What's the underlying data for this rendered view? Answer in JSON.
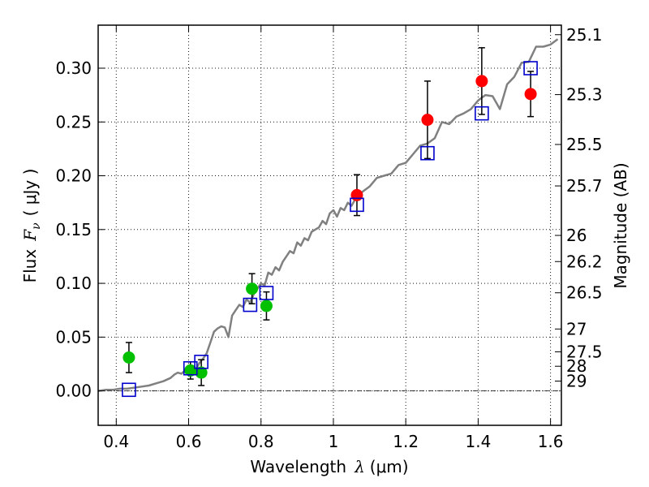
{
  "chart_data": {
    "type": "scatter",
    "xlabel_prefix": "Wavelength",
    "xlabel_symbol": "λ",
    "xlabel_unit": "(μm)",
    "ylabel_prefix": "Flux",
    "ylabel_symbol": "F",
    "ylabel_subscript": "ν",
    "ylabel_unit": "( μJy )",
    "ylabel_right": "Magnitude (AB)",
    "xlim": [
      0.35,
      1.63
    ],
    "ylim": [
      -0.032,
      0.34
    ],
    "x_ticks": [
      0.4,
      0.6,
      0.8,
      1.0,
      1.2,
      1.4,
      1.6
    ],
    "x_tick_labels": [
      "0.4",
      "0.6",
      "0.8",
      "1",
      "1.2",
      "1.4",
      "1.6"
    ],
    "y_ticks": [
      0.0,
      0.05,
      0.1,
      0.15,
      0.2,
      0.25,
      0.3
    ],
    "y_tick_labels": [
      "0.00",
      "0.05",
      "0.10",
      "0.15",
      "0.20",
      "0.25",
      "0.30"
    ],
    "right_ticks": [
      {
        "label": "25.1",
        "mag": 25.1
      },
      {
        "label": "25.3",
        "mag": 25.3
      },
      {
        "label": "25.5",
        "mag": 25.5
      },
      {
        "label": "25.7",
        "mag": 25.7
      },
      {
        "label": "26",
        "mag": 26.0
      },
      {
        "label": "26.2",
        "mag": 26.2
      },
      {
        "label": "26.5",
        "mag": 26.5
      },
      {
        "label": "27",
        "mag": 27.0
      },
      {
        "label": "27.5",
        "mag": 27.5
      },
      {
        "label": "28",
        "mag": 28.0
      },
      {
        "label": "29",
        "mag": 29.0
      }
    ],
    "grid": true,
    "colors": {
      "model": "#808080",
      "green": "#00c000",
      "red": "#ff0000",
      "box": "#0000cc",
      "errorbar": "#000000",
      "zero_line": "#000000"
    },
    "model_curve": {
      "x": [
        0.35,
        0.37,
        0.39,
        0.41,
        0.43,
        0.45,
        0.47,
        0.49,
        0.51,
        0.53,
        0.55,
        0.56,
        0.57,
        0.58,
        0.59,
        0.6,
        0.61,
        0.62,
        0.63,
        0.64,
        0.65,
        0.66,
        0.67,
        0.68,
        0.69,
        0.7,
        0.71,
        0.72,
        0.73,
        0.74,
        0.75,
        0.76,
        0.77,
        0.78,
        0.79,
        0.8,
        0.81,
        0.82,
        0.83,
        0.84,
        0.85,
        0.86,
        0.87,
        0.88,
        0.89,
        0.9,
        0.91,
        0.92,
        0.93,
        0.94,
        0.95,
        0.96,
        0.97,
        0.98,
        0.99,
        1.0,
        1.01,
        1.02,
        1.03,
        1.04,
        1.05,
        1.06,
        1.07,
        1.08,
        1.1,
        1.12,
        1.14,
        1.16,
        1.18,
        1.2,
        1.22,
        1.24,
        1.26,
        1.28,
        1.3,
        1.32,
        1.34,
        1.36,
        1.38,
        1.4,
        1.42,
        1.44,
        1.46,
        1.48,
        1.5,
        1.52,
        1.54,
        1.56,
        1.58,
        1.6,
        1.62
      ],
      "y": [
        0.0,
        0.001,
        0.001,
        0.002,
        0.002,
        0.003,
        0.004,
        0.005,
        0.007,
        0.009,
        0.012,
        0.015,
        0.017,
        0.016,
        0.019,
        0.021,
        0.023,
        0.02,
        0.026,
        0.03,
        0.035,
        0.045,
        0.055,
        0.058,
        0.06,
        0.059,
        0.05,
        0.07,
        0.075,
        0.08,
        0.078,
        0.085,
        0.082,
        0.09,
        0.095,
        0.1,
        0.098,
        0.11,
        0.108,
        0.115,
        0.112,
        0.12,
        0.125,
        0.13,
        0.128,
        0.138,
        0.135,
        0.142,
        0.14,
        0.148,
        0.15,
        0.152,
        0.158,
        0.155,
        0.165,
        0.168,
        0.162,
        0.17,
        0.168,
        0.175,
        0.172,
        0.178,
        0.18,
        0.185,
        0.19,
        0.198,
        0.2,
        0.202,
        0.21,
        0.212,
        0.22,
        0.228,
        0.23,
        0.235,
        0.25,
        0.248,
        0.255,
        0.258,
        0.262,
        0.27,
        0.275,
        0.274,
        0.262,
        0.285,
        0.292,
        0.305,
        0.306,
        0.32,
        0.32,
        0.322,
        0.327
      ]
    },
    "series": [
      {
        "marker": "green-circle",
        "points": [
          {
            "x": 0.435,
            "y": 0.031,
            "err": 0.014
          },
          {
            "x": 0.605,
            "y": 0.019,
            "err": 0.008
          },
          {
            "x": 0.635,
            "y": 0.017,
            "err": 0.012
          },
          {
            "x": 0.775,
            "y": 0.095,
            "err": 0.014
          },
          {
            "x": 0.815,
            "y": 0.079,
            "err": 0.013
          }
        ]
      },
      {
        "marker": "red-circle",
        "points": [
          {
            "x": 1.065,
            "y": 0.182,
            "err": 0.019
          },
          {
            "x": 1.26,
            "y": 0.252,
            "err": 0.036
          },
          {
            "x": 1.41,
            "y": 0.288,
            "err": 0.031
          },
          {
            "x": 1.545,
            "y": 0.276,
            "err": 0.021
          }
        ]
      },
      {
        "marker": "blue-open-square",
        "points": [
          {
            "x": 0.435,
            "y": 0.001
          },
          {
            "x": 0.605,
            "y": 0.021
          },
          {
            "x": 0.635,
            "y": 0.027
          },
          {
            "x": 0.77,
            "y": 0.08
          },
          {
            "x": 0.815,
            "y": 0.091
          },
          {
            "x": 1.065,
            "y": 0.173
          },
          {
            "x": 1.26,
            "y": 0.221
          },
          {
            "x": 1.41,
            "y": 0.258
          },
          {
            "x": 1.545,
            "y": 0.3
          }
        ]
      }
    ]
  }
}
